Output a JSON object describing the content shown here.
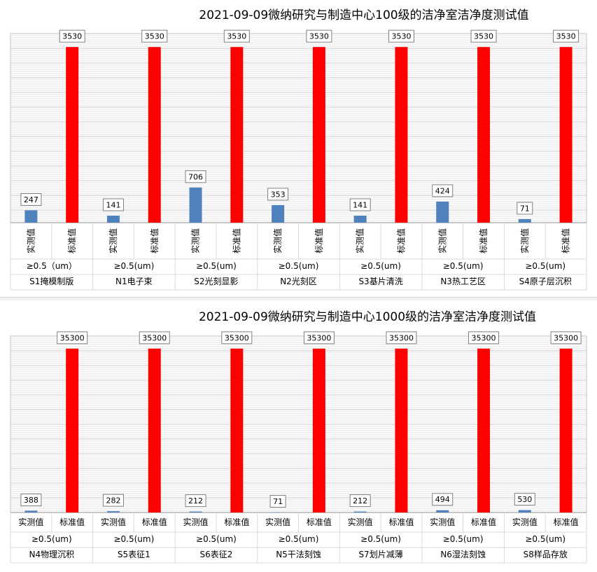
{
  "chart_data": [
    {
      "type": "bar",
      "title": "2021-09-09微纳研究与制造中心100级的洁净室洁净度测试值",
      "series_labels": [
        "实测值",
        "标准值"
      ],
      "categories": [
        {
          "name": "S1掩模制版",
          "size": "≥0.5（um）",
          "measured": 247,
          "standard": 3530
        },
        {
          "name": "N1电子束",
          "size": "≥0.5(um)",
          "measured": 141,
          "standard": 3530
        },
        {
          "name": "S2光刻显影",
          "size": "≥0.5(um)",
          "measured": 706,
          "standard": 3530
        },
        {
          "name": "N2光刻区",
          "size": "≥0.5(um)",
          "measured": 353,
          "standard": 3530
        },
        {
          "name": "S3基片清洗",
          "size": "≥0.5(um)",
          "measured": 141,
          "standard": 3530
        },
        {
          "name": "N3热工艺区",
          "size": "≥0.5(um)",
          "measured": 424,
          "standard": 3530
        },
        {
          "name": "S4原子层沉积",
          "size": "≥0.5(um)",
          "measured": 71,
          "standard": 3530
        }
      ],
      "colors": {
        "measured": "#4f81bd",
        "standard": "#ff0000"
      },
      "ylim": [
        0,
        3800
      ],
      "grid": true,
      "legend": "none"
    },
    {
      "type": "bar",
      "title": "2021-09-09微纳研究与制造中心1000级的洁净室洁净度测试值",
      "series_labels": [
        "实测值",
        "标准值"
      ],
      "categories": [
        {
          "name": "N4物理沉积",
          "size": "≥0.5(um)",
          "measured": 388,
          "standard": 35300
        },
        {
          "name": "S5表征1",
          "size": "≥0.5(um)",
          "measured": 282,
          "standard": 35300
        },
        {
          "name": "S6表征2",
          "size": "≥0.5(um)",
          "measured": 212,
          "standard": 35300
        },
        {
          "name": "N5干法刻蚀",
          "size": "≥0.5(um)",
          "measured": 71,
          "standard": 35300
        },
        {
          "name": "S7划片减薄",
          "size": "≥0.5(um)",
          "measured": 212,
          "standard": 35300
        },
        {
          "name": "N6湿法刻蚀",
          "size": "≥0.5(um)",
          "measured": 494,
          "standard": 35300
        },
        {
          "name": "S8样品存放",
          "size": "≥0.5(um)",
          "measured": 530,
          "standard": 35300
        }
      ],
      "colors": {
        "measured": "#4f81bd",
        "standard": "#ff0000"
      },
      "ylim": [
        0,
        38000
      ],
      "grid": true,
      "legend": "none"
    }
  ]
}
